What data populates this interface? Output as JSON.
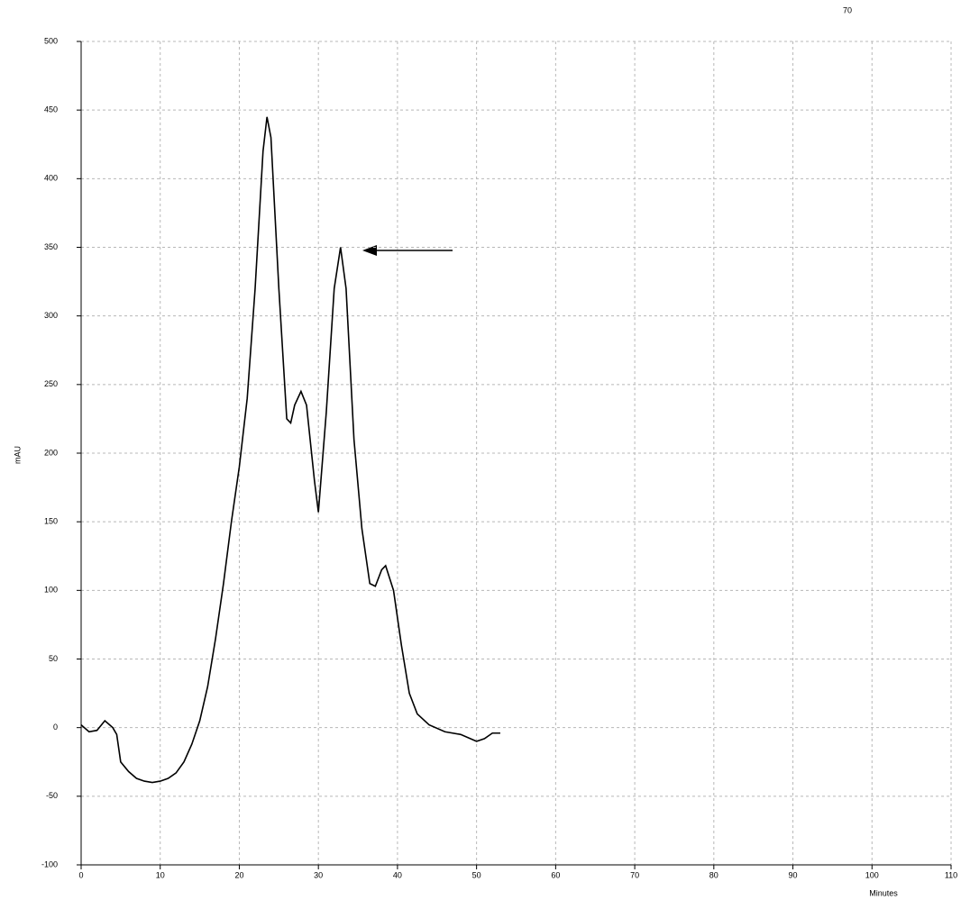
{
  "chart_data": {
    "type": "line",
    "page_number": "70",
    "y_label": "mAU",
    "x_label": "Minutes",
    "x": [
      0,
      1,
      2,
      3,
      4,
      4.5,
      5,
      6,
      7,
      8,
      9,
      10,
      11,
      12,
      13,
      14,
      15,
      16,
      17,
      18,
      19,
      20,
      21,
      22,
      23,
      23.5,
      24,
      25,
      26,
      26.5,
      27,
      27.8,
      28.5,
      29.5,
      30,
      31,
      32,
      32.8,
      33.5,
      34.5,
      35.5,
      36.5,
      37.2,
      38,
      38.5,
      39.5,
      40.5,
      41.5,
      42.5,
      44,
      46,
      48,
      50,
      51,
      52,
      53
    ],
    "series": [
      {
        "color": "#000000",
        "values": [
          2,
          -3,
          -2,
          5,
          0,
          -5,
          -25,
          -32,
          -37,
          -39,
          -40,
          -39,
          -37,
          -33,
          -25,
          -12,
          5,
          30,
          65,
          105,
          150,
          190,
          240,
          320,
          420,
          445,
          430,
          320,
          225,
          222,
          235,
          245,
          235,
          180,
          157,
          230,
          320,
          350,
          320,
          210,
          145,
          105,
          103,
          115,
          118,
          100,
          60,
          25,
          10,
          2,
          -3,
          -5,
          -10,
          -8,
          -4,
          -4
        ]
      }
    ],
    "xlim": [
      0,
      110
    ],
    "ylim": [
      -100,
      500
    ],
    "xticks": [
      0,
      10,
      20,
      30,
      40,
      50,
      60,
      70,
      80,
      90,
      100,
      110
    ],
    "yticks": [
      -100,
      -50,
      0,
      50,
      100,
      150,
      200,
      250,
      300,
      350,
      400,
      450,
      500
    ],
    "grid": true
  }
}
